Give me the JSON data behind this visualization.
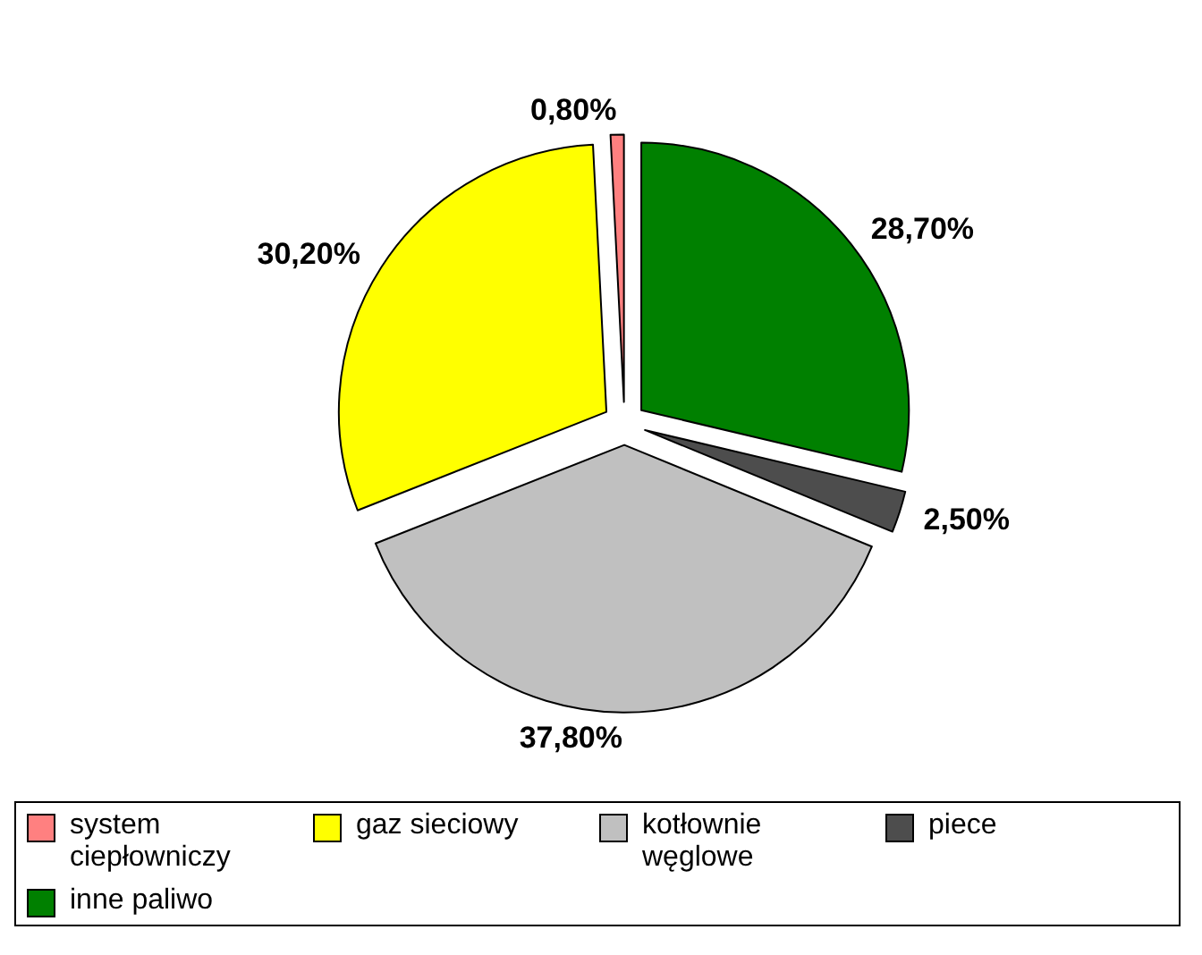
{
  "chart_data": {
    "type": "pie",
    "categories": [
      "system ciepłowniczy",
      "gaz sieciowy",
      "kotłownie węglowe",
      "piece",
      "inne paliwo"
    ],
    "values": [
      0.8,
      30.2,
      37.8,
      2.5,
      28.7
    ],
    "colors": [
      "#ff8080",
      "#ffff00",
      "#c0c0c0",
      "#4d4d4d",
      "#008000"
    ],
    "value_labels": [
      "0,80%",
      "30,20%",
      "37,80%",
      "2,50%",
      "28,70%"
    ],
    "legend": "bottom"
  }
}
